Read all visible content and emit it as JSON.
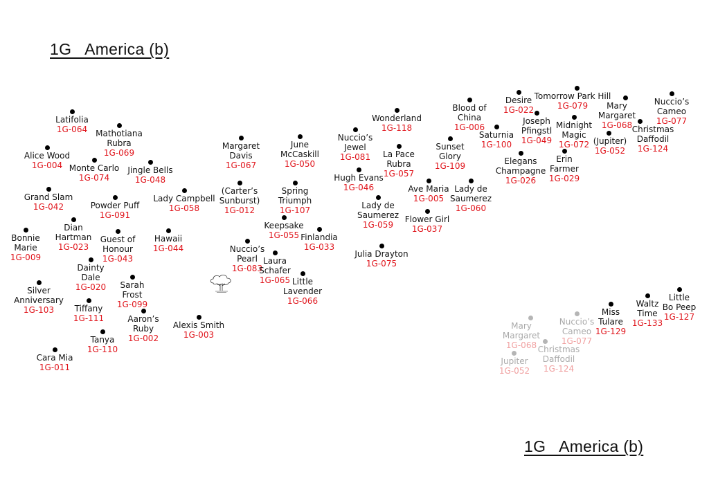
{
  "titles": {
    "top": "1G   America (b)",
    "bottom": "1G   America (b)"
  },
  "colors": {
    "code": "#e0141b",
    "dot": "#000000",
    "ghost": "#b5b5b5"
  },
  "plants": [
    {
      "lines": [
        "Latifolia"
      ],
      "code": "1G-064"
    },
    {
      "lines": [
        "Mathotiana",
        "Rubra"
      ],
      "code": "1G-069"
    },
    {
      "lines": [
        "Alice Wood"
      ],
      "code": "1G-004"
    },
    {
      "lines": [
        "Monte Carlo"
      ],
      "code": "1G-074"
    },
    {
      "lines": [
        "Jingle Bells"
      ],
      "code": "1G-048"
    },
    {
      "lines": [
        "Grand Slam"
      ],
      "code": "1G-042"
    },
    {
      "lines": [
        "Powder Puff"
      ],
      "code": "1G-091"
    },
    {
      "lines": [
        "Lady Campbell"
      ],
      "code": "1G-058"
    },
    {
      "lines": [
        "Dian",
        "Hartman"
      ],
      "code": "1G-023"
    },
    {
      "lines": [
        "Bonnie",
        "Marie"
      ],
      "code": "1G-009"
    },
    {
      "lines": [
        "Guest of",
        "Honour"
      ],
      "code": "1G-043"
    },
    {
      "lines": [
        "Hawaii"
      ],
      "code": "1G-044"
    },
    {
      "lines": [
        "Dainty",
        "Dale"
      ],
      "code": "1G-020"
    },
    {
      "lines": [
        "Silver",
        "Anniversary"
      ],
      "code": "1G-103"
    },
    {
      "lines": [
        "Sarah",
        "Frost"
      ],
      "code": "1G-099"
    },
    {
      "lines": [
        "Tiffany"
      ],
      "code": "1G-111"
    },
    {
      "lines": [
        "Aaron’s",
        "Ruby"
      ],
      "code": "1G-002"
    },
    {
      "lines": [
        "Alexis Smith"
      ],
      "code": "1G-003"
    },
    {
      "lines": [
        "Tanya"
      ],
      "code": "1G-110"
    },
    {
      "lines": [
        "Cara Mia"
      ],
      "code": "1G-011"
    },
    {
      "lines": [
        "Margaret",
        "Davis"
      ],
      "code": "1G-067"
    },
    {
      "lines": [
        "June",
        "McCaskill"
      ],
      "code": "1G-050"
    },
    {
      "lines": [
        "(Carter’s",
        "Sunburst)"
      ],
      "code": "1G-012"
    },
    {
      "lines": [
        "Spring",
        "Triumph"
      ],
      "code": "1G-107"
    },
    {
      "lines": [
        "Keepsake"
      ],
      "code": "1G-055"
    },
    {
      "lines": [
        "Finlandia"
      ],
      "code": "1G-033"
    },
    {
      "lines": [
        "Nuccio’s",
        "Pearl"
      ],
      "code": "1G-083"
    },
    {
      "lines": [
        "Laura",
        "Schafer"
      ],
      "code": "1G-065"
    },
    {
      "lines": [
        "Little",
        "Lavender"
      ],
      "code": "1G-066"
    },
    {
      "lines": [
        "Nuccio’s",
        "Jewel"
      ],
      "code": "1G-081"
    },
    {
      "lines": [
        "Wonderland"
      ],
      "code": "1G-118"
    },
    {
      "lines": [
        "La Pace",
        "Rubra"
      ],
      "code": "1G-057"
    },
    {
      "lines": [
        "Hugh Evans"
      ],
      "code": "1G-046"
    },
    {
      "lines": [
        "Lady de",
        "Saumerez"
      ],
      "code": "1G-059"
    },
    {
      "lines": [
        "Ave Maria"
      ],
      "code": "1G-005"
    },
    {
      "lines": [
        "Flower Girl"
      ],
      "code": "1G-037"
    },
    {
      "lines": [
        "Julia Drayton"
      ],
      "code": "1G-075"
    },
    {
      "lines": [
        "Blood of",
        "China"
      ],
      "code": "1G-006"
    },
    {
      "lines": [
        "Sunset",
        "Glory"
      ],
      "code": "1G-109"
    },
    {
      "lines": [
        "Saturnia"
      ],
      "code": "1G-100"
    },
    {
      "lines": [
        "Desire"
      ],
      "code": "1G-022"
    },
    {
      "lines": [
        "Joseph",
        "Pfingstl"
      ],
      "code": "1G-049"
    },
    {
      "lines": [
        "Tomorrow Park Hill"
      ],
      "code": "1G-079"
    },
    {
      "lines": [
        "Midnight",
        "Magic"
      ],
      "code": "1G-072"
    },
    {
      "lines": [
        "Mary",
        "Margaret"
      ],
      "code": "1G-068"
    },
    {
      "lines": [
        "(Jupiter)"
      ],
      "code": "1G-052"
    },
    {
      "lines": [
        "Christmas",
        "Daffodil"
      ],
      "code": "1G-124"
    },
    {
      "lines": [
        "Nuccio’s",
        "Cameo"
      ],
      "code": "1G-077"
    },
    {
      "lines": [
        "Elegans",
        "Champagne"
      ],
      "code": "1G-026"
    },
    {
      "lines": [
        "Erin",
        "Farmer"
      ],
      "code": "1G-029"
    },
    {
      "lines": [
        "Lady de",
        "Saumerez"
      ],
      "code": "1G-060"
    },
    {
      "lines": [
        "Miss",
        "Tulare"
      ],
      "code": "1G-129"
    },
    {
      "lines": [
        "Waltz",
        "Time"
      ],
      "code": "1G-133"
    },
    {
      "lines": [
        "Little",
        "Bo Peep"
      ],
      "code": "1G-127"
    }
  ],
  "ghost_plants": [
    {
      "lines": [
        "Mary",
        "Margaret"
      ],
      "code": "1G-068"
    },
    {
      "lines": [
        "Nuccio’s",
        "Cameo"
      ],
      "code": "1G-077"
    },
    {
      "lines": [
        "Christmas",
        "Daffodil"
      ],
      "code": "1G-124"
    },
    {
      "lines": [
        "Jupiter"
      ],
      "code": "1G-052"
    }
  ],
  "icons": {
    "tree": "tree-icon"
  }
}
